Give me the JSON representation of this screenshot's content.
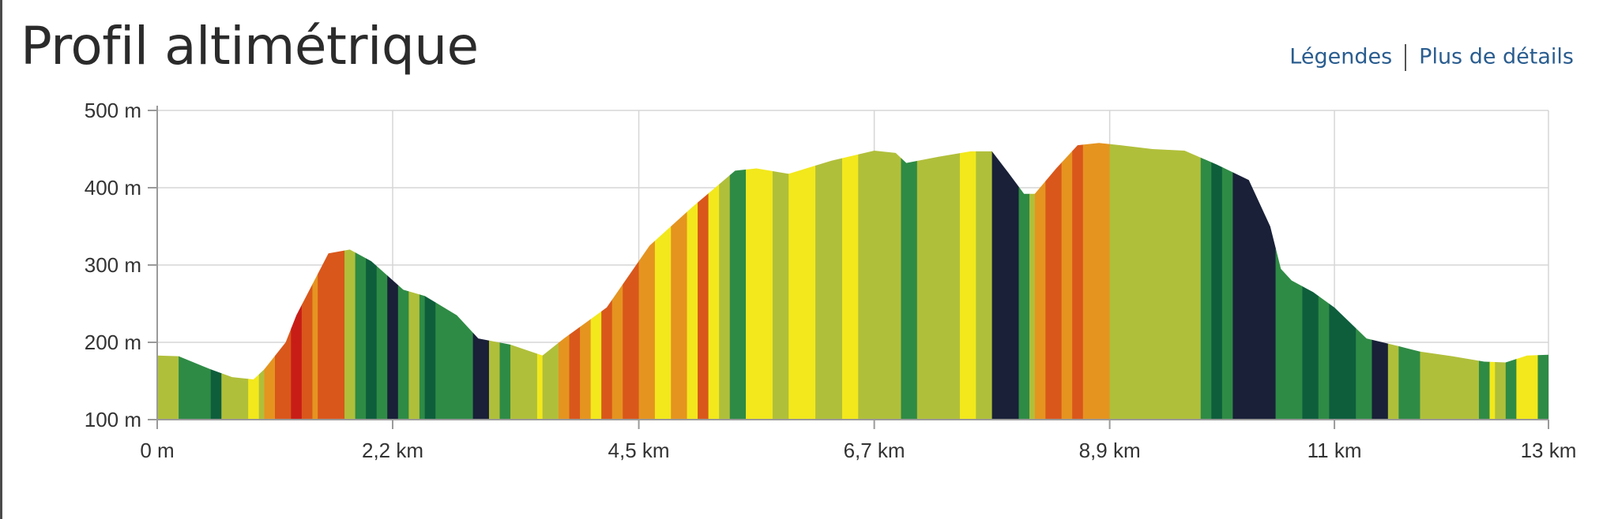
{
  "header": {
    "title": "Profil altimétrique",
    "legend_link": "Légendes",
    "details_link": "Plus de détails"
  },
  "chart_data": {
    "type": "area",
    "title": "Profil altimétrique",
    "xlabel": "",
    "ylabel": "",
    "xlim": [
      0,
      13
    ],
    "ylim": [
      100,
      500
    ],
    "x_ticks": [
      0,
      2.2,
      4.5,
      6.7,
      8.9,
      11,
      13
    ],
    "x_tick_labels": [
      "0 m",
      "2,2 km",
      "4,5 km",
      "6,7 km",
      "8,9 km",
      "11 km",
      "13 km"
    ],
    "y_ticks": [
      100,
      200,
      300,
      400,
      500
    ],
    "y_tick_labels": [
      "100 m",
      "200 m",
      "300 m",
      "400 m",
      "500 m"
    ],
    "grid": true,
    "x_km": [
      0,
      0.2,
      0.5,
      0.7,
      0.9,
      1.0,
      1.2,
      1.3,
      1.6,
      1.8,
      2.0,
      2.3,
      2.5,
      2.8,
      3.0,
      3.3,
      3.6,
      3.8,
      4.2,
      4.6,
      5.0,
      5.4,
      5.6,
      5.9,
      6.3,
      6.7,
      6.9,
      7.0,
      7.3,
      7.6,
      7.8,
      7.95,
      8.1,
      8.2,
      8.4,
      8.6,
      8.8,
      9.0,
      9.3,
      9.6,
      9.9,
      10.2,
      10.4,
      10.5,
      10.6,
      10.8,
      11.0,
      11.3,
      11.6,
      11.8,
      12.1,
      12.4,
      12.6,
      12.8,
      13.0
    ],
    "elevation_m": [
      183,
      182,
      165,
      155,
      152,
      165,
      200,
      235,
      315,
      320,
      305,
      268,
      260,
      235,
      205,
      197,
      183,
      205,
      245,
      325,
      375,
      422,
      425,
      418,
      435,
      448,
      445,
      432,
      440,
      447,
      447,
      420,
      392,
      392,
      425,
      455,
      458,
      455,
      450,
      448,
      430,
      410,
      350,
      295,
      280,
      265,
      245,
      205,
      195,
      188,
      182,
      175,
      174,
      183,
      184
    ],
    "slope_segment_boundaries_km": [
      0,
      0.2,
      0.5,
      0.6,
      0.85,
      0.95,
      1.0,
      1.1,
      1.25,
      1.35,
      1.45,
      1.5,
      1.75,
      1.85,
      1.95,
      2.05,
      2.15,
      2.25,
      2.35,
      2.45,
      2.5,
      2.6,
      2.95,
      3.1,
      3.2,
      3.3,
      3.55,
      3.6,
      3.75,
      3.85,
      3.95,
      4.05,
      4.15,
      4.25,
      4.35,
      4.5,
      4.65,
      4.8,
      4.95,
      5.05,
      5.15,
      5.25,
      5.35,
      5.5,
      5.75,
      5.9,
      6.15,
      6.4,
      6.55,
      6.95,
      7.1,
      7.5,
      7.65,
      7.8,
      8.05,
      8.15,
      8.2,
      8.3,
      8.45,
      8.55,
      8.65,
      8.9,
      9.75,
      9.85,
      9.95,
      10.05,
      10.45,
      10.7,
      10.85,
      10.95,
      11.2,
      11.35,
      11.5,
      11.6,
      11.8,
      12.35,
      12.45,
      12.5,
      12.6,
      12.7,
      12.9,
      13.0
    ],
    "slope_segment_colors": [
      "#b0bf3a",
      "#2e8b45",
      "#0e5e3c",
      "#b0bf3a",
      "#f2e81c",
      "#b0bf3a",
      "#e59420",
      "#d9571b",
      "#c81d17",
      "#d9571b",
      "#e59420",
      "#d9571b",
      "#b0bf3a",
      "#2e8b45",
      "#0e5e3c",
      "#2e8b45",
      "#192038",
      "#2e8b45",
      "#b0bf3a",
      "#2e8b45",
      "#0e5e3c",
      "#2e8b45",
      "#192038",
      "#b0bf3a",
      "#2e8b45",
      "#b0bf3a",
      "#f2e81c",
      "#b0bf3a",
      "#e59420",
      "#d9571b",
      "#e59420",
      "#f2e81c",
      "#d9571b",
      "#e59420",
      "#d9571b",
      "#e59420",
      "#f2e81c",
      "#e59420",
      "#f2e81c",
      "#d9571b",
      "#f2e81c",
      "#b0bf3a",
      "#2e8b45",
      "#f2e81c",
      "#b0bf3a",
      "#f2e81c",
      "#b0bf3a",
      "#f2e81c",
      "#b0bf3a",
      "#2e8b45",
      "#b0bf3a",
      "#f2e81c",
      "#b0bf3a",
      "#192038",
      "#2e8b45",
      "#b0bf3a",
      "#e59420",
      "#d9571b",
      "#e59420",
      "#d9571b",
      "#e59420",
      "#b0bf3a",
      "#2e8b45",
      "#0e5e3c",
      "#2e8b45",
      "#192038",
      "#2e8b45",
      "#0e5e3c",
      "#2e8b45",
      "#0e5e3c",
      "#2e8b45",
      "#192038",
      "#b0bf3a",
      "#2e8b45",
      "#b0bf3a",
      "#2e8b45",
      "#f2e81c",
      "#b0bf3a",
      "#2e8b45",
      "#f2e81c",
      "#2e8b45"
    ]
  }
}
